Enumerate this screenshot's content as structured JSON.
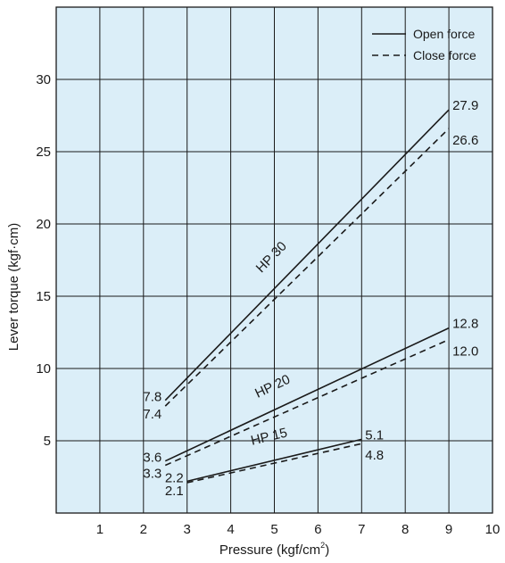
{
  "chart_data": {
    "type": "line",
    "xlabel": "Pressure (kgf/cm",
    "xlabel_sup": "2",
    "xlabel_close": ")",
    "ylabel": "Lever torque (kgf·cm)",
    "xlim": [
      0,
      10
    ],
    "ylim": [
      0,
      35
    ],
    "x_ticks": [
      1,
      2,
      3,
      4,
      5,
      6,
      7,
      8,
      9,
      10
    ],
    "y_ticks": [
      5,
      10,
      15,
      20,
      25,
      30
    ],
    "grid": true,
    "plot_background": "#dbeef8",
    "line_color": "#1a1a1a",
    "legend": {
      "placement": "top-right",
      "entries": [
        {
          "label": "Open force",
          "style": "solid"
        },
        {
          "label": "Close force",
          "style": "dashed"
        }
      ]
    },
    "series": [
      {
        "name": "HP 30",
        "kind": "open",
        "style": "solid",
        "x": [
          2.5,
          9
        ],
        "y": [
          7.8,
          27.9
        ],
        "labels": [
          "7.8",
          "27.9"
        ]
      },
      {
        "name": "HP 30",
        "kind": "close",
        "style": "dashed",
        "x": [
          2.5,
          9
        ],
        "y": [
          7.4,
          26.6
        ],
        "labels": [
          "7.4",
          "26.6"
        ]
      },
      {
        "name": "HP 20",
        "kind": "open",
        "style": "solid",
        "x": [
          2.5,
          9
        ],
        "y": [
          3.6,
          12.8
        ],
        "labels": [
          "3.6",
          "12.8"
        ]
      },
      {
        "name": "HP 20",
        "kind": "close",
        "style": "dashed",
        "x": [
          2.5,
          9
        ],
        "y": [
          3.3,
          12.0
        ],
        "labels": [
          "3.3",
          "12.0"
        ]
      },
      {
        "name": "HP 15",
        "kind": "open",
        "style": "solid",
        "x": [
          3,
          7
        ],
        "y": [
          2.2,
          5.1
        ],
        "labels": [
          "2.2",
          "5.1"
        ]
      },
      {
        "name": "HP 15",
        "kind": "close",
        "style": "dashed",
        "x": [
          3,
          7
        ],
        "y": [
          2.1,
          4.8
        ],
        "labels": [
          "2.1",
          "4.8"
        ]
      }
    ],
    "series_labels": [
      {
        "text": "HP 30",
        "x": 5.0,
        "y": 17.5
      },
      {
        "text": "HP 20",
        "x": 5.0,
        "y": 8.5
      },
      {
        "text": "HP 15",
        "x": 4.9,
        "y": 5.0
      }
    ]
  }
}
